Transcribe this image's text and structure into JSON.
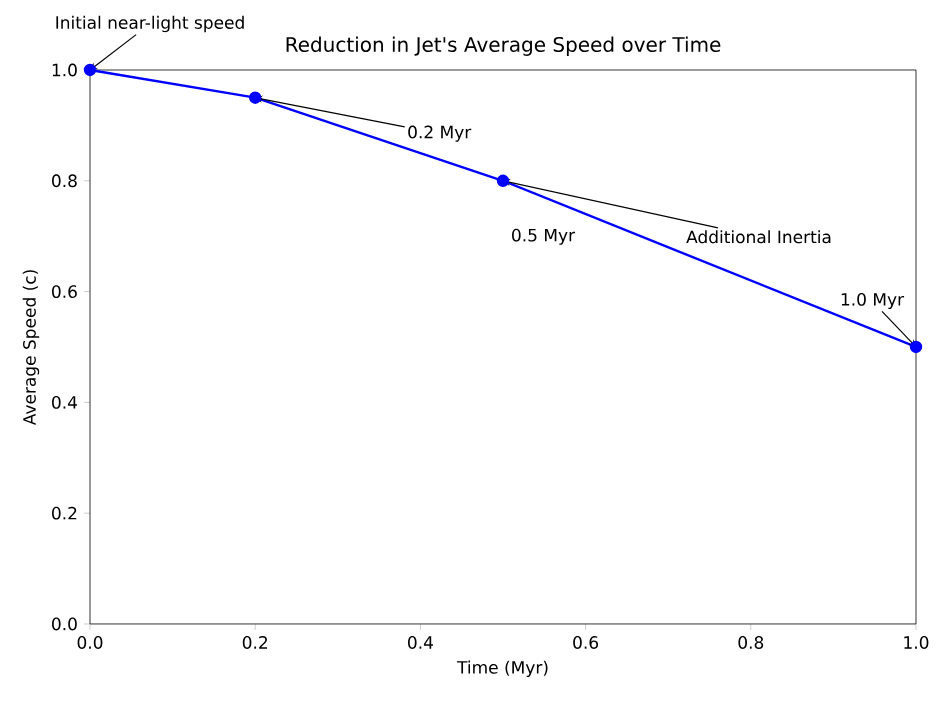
{
  "chart_data": {
    "type": "line",
    "title": "Reduction in Jet's Average Speed over Time",
    "xlabel": "Time (Myr)",
    "ylabel": "Average Speed (c)",
    "x": [
      0,
      0.2,
      0.5,
      1.0
    ],
    "series": [
      {
        "color": "#0000ff",
        "values": [
          1.0,
          0.95,
          0.8,
          0.5
        ]
      }
    ],
    "marker": "circle",
    "line_style": "solid",
    "xlim": [
      0,
      1
    ],
    "ylim": [
      0,
      1
    ],
    "xticks": [
      {
        "value": 0,
        "label": "0.0"
      },
      0.2,
      0.4,
      0.6,
      0.8,
      {
        "value": 1,
        "label": "1.0"
      }
    ],
    "yticks": [
      {
        "value": 0,
        "label": "0.0"
      },
      0.2,
      0.4,
      0.6,
      0.8,
      {
        "value": 1,
        "label": "1.0"
      }
    ],
    "annotations": [
      {
        "text": "Initial near-light speed",
        "x": 0,
        "y": 1.0
      },
      {
        "text": "0.2 Myr",
        "x": 0.2,
        "y": 0.95
      },
      {
        "text": "0.5 Myr",
        "x": 0.5,
        "y": 0.8
      },
      {
        "text": "Additional Inertia",
        "x": 0.5,
        "y": 0.8
      },
      {
        "text": "1.0 Myr",
        "x": 1.0,
        "y": 0.5
      }
    ]
  }
}
